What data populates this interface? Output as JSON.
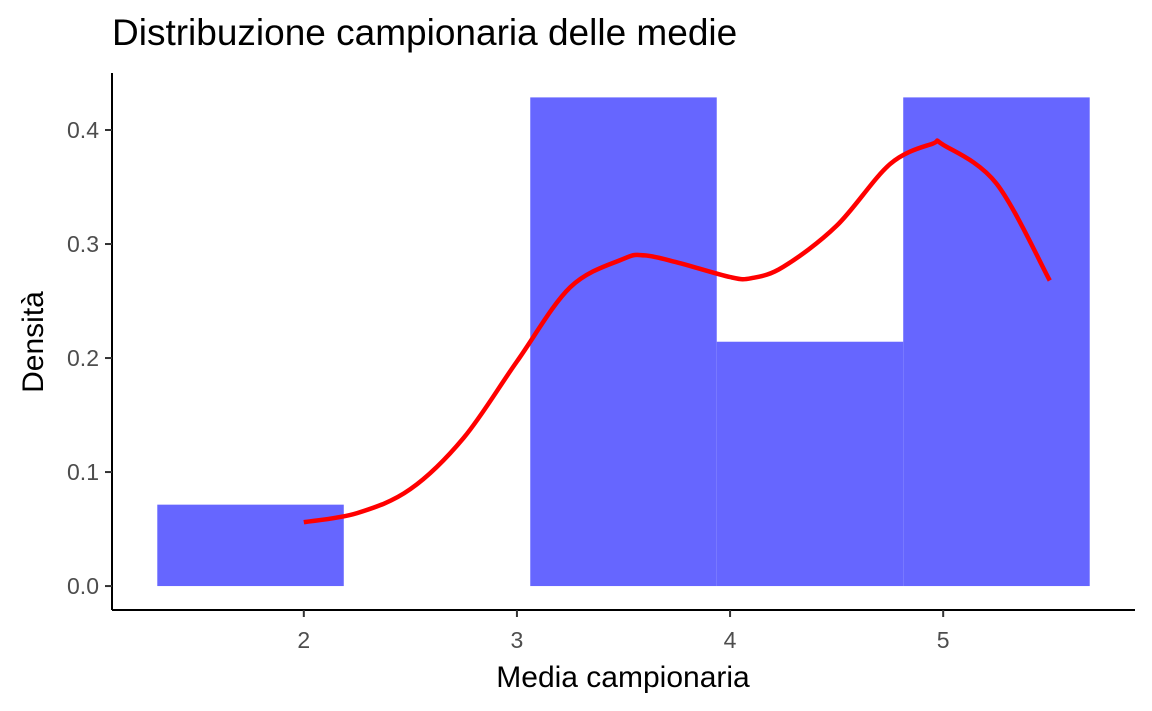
{
  "chart_data": {
    "type": "bar",
    "title": "Distribuzione campionaria delle medie",
    "xlabel": "Media campionaria",
    "ylabel": "Densità",
    "xlim": [
      1.1,
      5.9
    ],
    "ylim": [
      -0.021,
      0.45
    ],
    "x_ticks": [
      2,
      3,
      4,
      5
    ],
    "y_ticks": [
      0.0,
      0.1,
      0.2,
      0.3,
      0.4
    ],
    "y_tick_labels": [
      "0.0",
      "0.1",
      "0.2",
      "0.3",
      "0.4"
    ],
    "grid": false,
    "legend": "none",
    "histogram": {
      "color": "#6666ff",
      "bins": [
        {
          "x0": 1.3125,
          "x1": 2.1875,
          "density": 0.0714
        },
        {
          "x0": 2.1875,
          "x1": 3.0625,
          "density": 0.0
        },
        {
          "x0": 3.0625,
          "x1": 3.9375,
          "density": 0.4286
        },
        {
          "x0": 3.9375,
          "x1": 4.8125,
          "density": 0.2143
        },
        {
          "x0": 4.8125,
          "x1": 5.6875,
          "density": 0.4286
        }
      ]
    },
    "density_curve": {
      "color": "#ff0000",
      "x": [
        2.0,
        2.25,
        2.5,
        2.75,
        3.0,
        3.25,
        3.5,
        3.6,
        3.75,
        4.0,
        4.1,
        4.25,
        4.5,
        4.75,
        4.95,
        5.0,
        5.25,
        5.5
      ],
      "y": [
        0.056,
        0.064,
        0.085,
        0.13,
        0.197,
        0.262,
        0.287,
        0.29,
        0.284,
        0.271,
        0.27,
        0.28,
        0.316,
        0.37,
        0.388,
        0.387,
        0.353,
        0.268
      ]
    }
  }
}
